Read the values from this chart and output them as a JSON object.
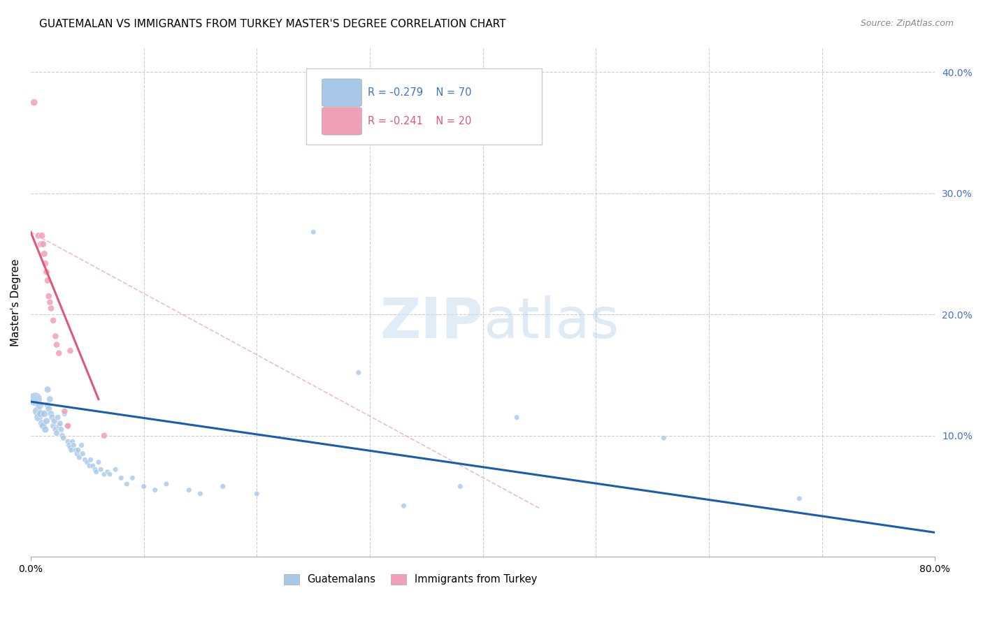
{
  "title": "GUATEMALAN VS IMMIGRANTS FROM TURKEY MASTER'S DEGREE CORRELATION CHART",
  "source": "Source: ZipAtlas.com",
  "ylabel": "Master's Degree",
  "legend_blue_label": "Guatemalans",
  "legend_pink_label": "Immigrants from Turkey",
  "xlim": [
    0.0,
    0.8
  ],
  "ylim": [
    0.0,
    0.42
  ],
  "blue_color": "#A8C8E8",
  "pink_color": "#F0A0B8",
  "blue_line_color": "#1A5DAD",
  "pink_line_color": "#E05878",
  "pink_dashed_color": "#E8A0B8",
  "grid_color": "#CCCCCC",
  "blue_scatter": [
    [
      0.004,
      0.13
    ],
    [
      0.006,
      0.12
    ],
    [
      0.007,
      0.115
    ],
    [
      0.008,
      0.125
    ],
    [
      0.009,
      0.118
    ],
    [
      0.01,
      0.11
    ],
    [
      0.011,
      0.108
    ],
    [
      0.012,
      0.118
    ],
    [
      0.013,
      0.105
    ],
    [
      0.014,
      0.112
    ],
    [
      0.015,
      0.138
    ],
    [
      0.015,
      0.125
    ],
    [
      0.016,
      0.122
    ],
    [
      0.017,
      0.13
    ],
    [
      0.018,
      0.118
    ],
    [
      0.019,
      0.115
    ],
    [
      0.02,
      0.108
    ],
    [
      0.021,
      0.112
    ],
    [
      0.022,
      0.105
    ],
    [
      0.023,
      0.102
    ],
    [
      0.024,
      0.115
    ],
    [
      0.025,
      0.108
    ],
    [
      0.026,
      0.11
    ],
    [
      0.027,
      0.105
    ],
    [
      0.028,
      0.1
    ],
    [
      0.029,
      0.098
    ],
    [
      0.03,
      0.118
    ],
    [
      0.032,
      0.108
    ],
    [
      0.033,
      0.095
    ],
    [
      0.034,
      0.092
    ],
    [
      0.035,
      0.09
    ],
    [
      0.036,
      0.088
    ],
    [
      0.037,
      0.095
    ],
    [
      0.038,
      0.092
    ],
    [
      0.04,
      0.088
    ],
    [
      0.041,
      0.085
    ],
    [
      0.042,
      0.088
    ],
    [
      0.043,
      0.082
    ],
    [
      0.045,
      0.092
    ],
    [
      0.046,
      0.085
    ],
    [
      0.048,
      0.08
    ],
    [
      0.05,
      0.078
    ],
    [
      0.052,
      0.075
    ],
    [
      0.053,
      0.08
    ],
    [
      0.055,
      0.075
    ],
    [
      0.057,
      0.072
    ],
    [
      0.058,
      0.07
    ],
    [
      0.06,
      0.078
    ],
    [
      0.062,
      0.072
    ],
    [
      0.065,
      0.068
    ],
    [
      0.068,
      0.07
    ],
    [
      0.07,
      0.068
    ],
    [
      0.075,
      0.072
    ],
    [
      0.08,
      0.065
    ],
    [
      0.085,
      0.06
    ],
    [
      0.09,
      0.065
    ],
    [
      0.1,
      0.058
    ],
    [
      0.11,
      0.055
    ],
    [
      0.12,
      0.06
    ],
    [
      0.14,
      0.055
    ],
    [
      0.15,
      0.052
    ],
    [
      0.17,
      0.058
    ],
    [
      0.2,
      0.052
    ],
    [
      0.25,
      0.268
    ],
    [
      0.29,
      0.152
    ],
    [
      0.33,
      0.042
    ],
    [
      0.38,
      0.058
    ],
    [
      0.43,
      0.115
    ],
    [
      0.56,
      0.098
    ],
    [
      0.68,
      0.048
    ]
  ],
  "blue_sizes": [
    200,
    100,
    80,
    70,
    65,
    60,
    58,
    55,
    52,
    50,
    48,
    48,
    45,
    45,
    45,
    45,
    42,
    42,
    40,
    40,
    38,
    38,
    38,
    38,
    35,
    35,
    35,
    35,
    35,
    35,
    33,
    33,
    33,
    33,
    33,
    33,
    33,
    33,
    33,
    33,
    30,
    30,
    30,
    30,
    30,
    30,
    30,
    30,
    30,
    30,
    30,
    30,
    30,
    30,
    30,
    30,
    30,
    30,
    30,
    30,
    30,
    30,
    30,
    30,
    30,
    30,
    30,
    30,
    30,
    30
  ],
  "pink_scatter": [
    [
      0.003,
      0.375
    ],
    [
      0.007,
      0.265
    ],
    [
      0.009,
      0.258
    ],
    [
      0.01,
      0.265
    ],
    [
      0.011,
      0.258
    ],
    [
      0.012,
      0.25
    ],
    [
      0.013,
      0.242
    ],
    [
      0.014,
      0.235
    ],
    [
      0.015,
      0.228
    ],
    [
      0.016,
      0.215
    ],
    [
      0.017,
      0.21
    ],
    [
      0.018,
      0.205
    ],
    [
      0.02,
      0.195
    ],
    [
      0.022,
      0.182
    ],
    [
      0.023,
      0.175
    ],
    [
      0.025,
      0.168
    ],
    [
      0.03,
      0.12
    ],
    [
      0.033,
      0.108
    ],
    [
      0.035,
      0.17
    ],
    [
      0.065,
      0.1
    ]
  ],
  "pink_sizes": [
    55,
    50,
    48,
    48,
    48,
    48,
    46,
    46,
    46,
    46,
    44,
    44,
    44,
    44,
    44,
    44,
    44,
    44,
    44,
    44
  ],
  "blue_regression": [
    0.0,
    0.128,
    0.8,
    0.02
  ],
  "pink_regression_solid": [
    0.0,
    0.268,
    0.06,
    0.13
  ],
  "pink_regression_dashed": [
    0.0,
    0.268,
    0.45,
    0.04
  ]
}
